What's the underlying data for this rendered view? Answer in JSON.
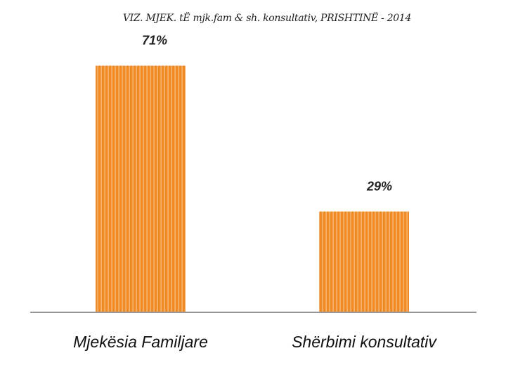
{
  "chart_data": {
    "type": "bar",
    "title": "VIZ. MJEK. tË mjk.fam & sh. konsultativ, PRISHTINË - 2014",
    "categories": [
      "Mjekësia Familjare",
      "Shërbimi konsultativ"
    ],
    "values": [
      71,
      29
    ],
    "data_labels": [
      "71%",
      "29%"
    ],
    "ylim": [
      0,
      100
    ],
    "grid": false,
    "legend": "none",
    "bar_color": "#F08A24",
    "stripe_color": "#F8C48C",
    "axis_color": "#999999"
  }
}
